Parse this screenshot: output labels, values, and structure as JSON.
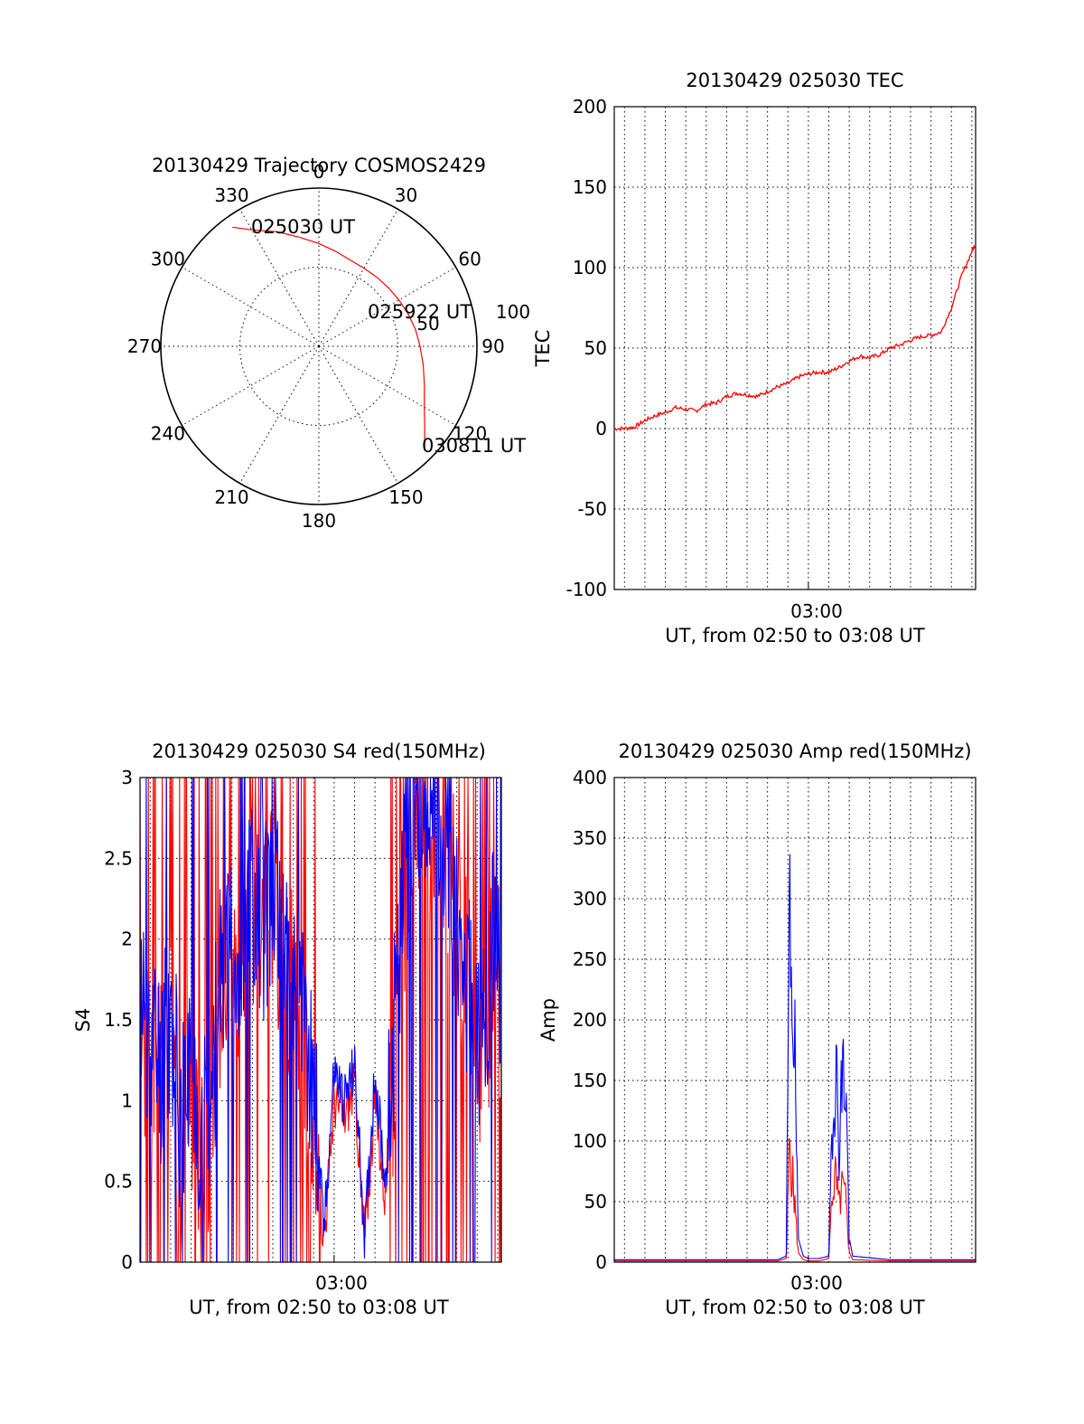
{
  "figure": {
    "polar": {
      "title": "20130429 Trajectory COSMOS2429",
      "angle_labels": [
        "0",
        "30",
        "60",
        "90",
        "120",
        "150",
        "180",
        "210",
        "240",
        "270",
        "300",
        "330"
      ],
      "radius_labels": [
        "50",
        "100"
      ],
      "annotations": {
        "start": "025030 UT",
        "mid": "025922 UT",
        "end": "030811 UT"
      },
      "trajectory_color": "#ff0000"
    },
    "tec": {
      "title": "20130429 025030 TEC",
      "ylabel": "TEC",
      "xlabel": "UT, from 02:50 to 03:08 UT",
      "yticks": [
        "200",
        "150",
        "100",
        "50",
        "0",
        "-50",
        "-100"
      ],
      "xtick": "03:00",
      "series_color": "#ff0000"
    },
    "s4": {
      "title": "20130429 025030 S4 red(150MHz)",
      "ylabel": "S4",
      "xlabel": "UT, from 02:50 to 03:08 UT",
      "yticks": [
        "3",
        "2.5",
        "2",
        "1.5",
        "1",
        "0.5",
        "0"
      ],
      "xtick": "03:00",
      "colors": [
        "#ff0000",
        "#0000ff"
      ]
    },
    "amp": {
      "title": "20130429 025030 Amp red(150MHz)",
      "ylabel": "Amp",
      "xlabel": "UT, from 02:50 to 03:08 UT",
      "yticks": [
        "400",
        "350",
        "300",
        "250",
        "200",
        "150",
        "100",
        "50",
        "0"
      ],
      "xtick": "03:00",
      "colors": [
        "#ff0000",
        "#0000ff"
      ]
    }
  },
  "chart_data": [
    {
      "type": "scatter",
      "title": "20130429 Trajectory COSMOS2429",
      "coordinate_system": "polar (azimuth in degrees clockwise from north, zenith distance)",
      "radial_range": [
        0,
        100
      ],
      "angle_ticks": [
        0,
        30,
        60,
        90,
        120,
        150,
        180,
        210,
        240,
        270,
        300,
        330
      ],
      "grid": true,
      "series": [
        {
          "azimuth": [
            324,
            330,
            340,
            350,
            0,
            10,
            20,
            30,
            40,
            50,
            60,
            70,
            80,
            90,
            100,
            110,
            120,
            128,
            134
          ],
          "radius": [
            93,
            85,
            77,
            70,
            65,
            61,
            58,
            57,
            57,
            57.5,
            58.5,
            60,
            62,
            64,
            67,
            71,
            77,
            85,
            93
          ]
        }
      ],
      "annotations": [
        {
          "text": "025030 UT",
          "at": "start"
        },
        {
          "text": "025922 UT",
          "at": "middle"
        },
        {
          "text": "030811 UT",
          "at": "end"
        }
      ]
    },
    {
      "type": "line",
      "title": "20130429 025030 TEC",
      "xlabel": "UT, from 02:50 to 03:08 UT",
      "ylabel": "TEC",
      "xlim": [
        "02:50:30",
        "03:08:11"
      ],
      "ylim": [
        -100,
        200
      ],
      "grid": true,
      "series": [
        {
          "color": "#ff0000",
          "x": [
            "02:50:30",
            "02:51:00",
            "02:51:30",
            "02:52:00",
            "02:52:30",
            "02:53:00",
            "02:53:30",
            "02:54:00",
            "02:54:30",
            "02:55:00",
            "02:55:30",
            "02:56:00",
            "02:56:30",
            "02:57:00",
            "02:57:30",
            "02:58:00",
            "02:58:30",
            "02:59:00",
            "02:59:30",
            "03:00:00",
            "03:00:30",
            "03:01:00",
            "03:01:30",
            "03:02:00",
            "03:02:30",
            "03:03:00",
            "03:03:30",
            "03:04:00",
            "03:04:30",
            "03:05:00",
            "03:05:30",
            "03:06:00",
            "03:06:30",
            "03:07:00",
            "03:07:30",
            "03:08:00",
            "03:08:11"
          ],
          "y": [
            0,
            0,
            1,
            5,
            8,
            10,
            13,
            12,
            11,
            15,
            16,
            20,
            22,
            21,
            20,
            23,
            26,
            28,
            32,
            34,
            35,
            35,
            38,
            42,
            45,
            44,
            46,
            50,
            52,
            55,
            57,
            58,
            60,
            75,
            95,
            110,
            115
          ]
        }
      ]
    },
    {
      "type": "line",
      "title": "20130429 025030 S4 red(150MHz)",
      "xlabel": "UT, from 02:50 to 03:08 UT",
      "ylabel": "S4",
      "xlim": [
        "02:50:30",
        "03:08:11"
      ],
      "ylim": [
        0,
        3
      ],
      "grid": true,
      "series": [
        {
          "color": "#0000ff",
          "x": [
            "02:50:30",
            "02:51:00",
            "02:51:30",
            "02:52:00",
            "02:52:30",
            "02:53:00",
            "02:53:30",
            "02:54:00",
            "02:54:30",
            "02:55:00",
            "02:55:30",
            "02:56:00",
            "02:56:30",
            "02:57:00",
            "02:57:30",
            "02:58:00",
            "02:58:30",
            "02:59:00",
            "02:59:30",
            "03:00:00",
            "03:00:30",
            "03:01:00",
            "03:01:30",
            "03:02:00",
            "03:02:30",
            "03:03:00",
            "03:03:30",
            "03:04:00",
            "03:04:30",
            "03:05:00",
            "03:05:30",
            "03:06:00",
            "03:06:30",
            "03:07:00",
            "03:07:30",
            "03:08:00",
            "03:08:11"
          ],
          "y": [
            1.7,
            1.4,
            1.2,
            1.5,
            0.9,
            1.2,
            0.8,
            1.0,
            1.9,
            2.1,
            1.8,
            2.3,
            2.1,
            2.3,
            2.0,
            1.8,
            1.4,
            1.1,
            0.17,
            1.2,
            1.0,
            1.2,
            0.15,
            1.2,
            0.5,
            1.5,
            2.4,
            2.8,
            2.6,
            2.9,
            2.7,
            2.2,
            1.8,
            1.2,
            1.6,
            2.2,
            1.5
          ]
        },
        {
          "color": "#ff0000",
          "x": [
            "02:50:30",
            "02:51:00",
            "02:51:30",
            "02:52:00",
            "02:52:30",
            "02:53:00",
            "02:53:30",
            "02:54:00",
            "02:54:30",
            "02:55:00",
            "02:55:30",
            "02:56:00",
            "02:56:30",
            "02:57:00",
            "02:57:30",
            "02:58:00",
            "02:58:30",
            "02:59:00",
            "02:59:30",
            "03:00:00",
            "03:00:30",
            "03:01:00",
            "03:01:30",
            "03:02:00",
            "03:02:30",
            "03:03:00",
            "03:03:30",
            "03:04:00",
            "03:04:30",
            "03:05:00",
            "03:05:30",
            "03:06:00",
            "03:06:30",
            "03:07:00",
            "03:07:30",
            "03:08:00",
            "03:08:11"
          ],
          "y": [
            1.5,
            1.3,
            1.1,
            1.4,
            0.8,
            1.1,
            0.7,
            0.9,
            1.8,
            2.0,
            1.7,
            2.2,
            2.0,
            2.2,
            1.9,
            1.7,
            1.3,
            0.9,
            0.14,
            1.0,
            0.9,
            1.1,
            0.13,
            1.0,
            0.4,
            1.4,
            2.3,
            2.7,
            2.5,
            2.8,
            2.6,
            2.1,
            1.7,
            1.0,
            1.5,
            2.1,
            1.4
          ]
        }
      ]
    },
    {
      "type": "line",
      "title": "20130429 025030 Amp red(150MHz)",
      "xlabel": "UT, from 02:50 to 03:08 UT",
      "ylabel": "Amp",
      "xlim": [
        "02:50:30",
        "03:08:11"
      ],
      "ylim": [
        0,
        400
      ],
      "grid": true,
      "series": [
        {
          "color": "#0000ff",
          "x": [
            "02:50:30",
            "02:58:30",
            "02:58:55",
            "02:59:05",
            "02:59:10",
            "02:59:20",
            "02:59:30",
            "02:59:45",
            "03:00:00",
            "03:00:30",
            "03:01:00",
            "03:01:10",
            "03:01:20",
            "03:01:30",
            "03:01:40",
            "03:01:50",
            "03:02:00",
            "03:02:10",
            "03:04:00",
            "03:08:11"
          ],
          "y": [
            2,
            2,
            5,
            345,
            310,
            210,
            20,
            5,
            3,
            3,
            5,
            150,
            200,
            120,
            190,
            180,
            20,
            5,
            2,
            2
          ]
        },
        {
          "color": "#ff0000",
          "x": [
            "02:50:30",
            "02:58:30",
            "02:58:55",
            "02:59:05",
            "02:59:10",
            "02:59:20",
            "02:59:30",
            "02:59:45",
            "03:00:00",
            "03:00:30",
            "03:01:00",
            "03:01:10",
            "03:01:20",
            "03:01:30",
            "03:01:40",
            "03:01:50",
            "03:02:00",
            "03:02:10",
            "03:04:00",
            "03:08:11"
          ],
          "y": [
            1,
            1,
            3,
            120,
            95,
            60,
            8,
            2,
            1,
            1,
            3,
            70,
            85,
            55,
            75,
            60,
            8,
            2,
            1,
            1
          ]
        }
      ]
    }
  ]
}
